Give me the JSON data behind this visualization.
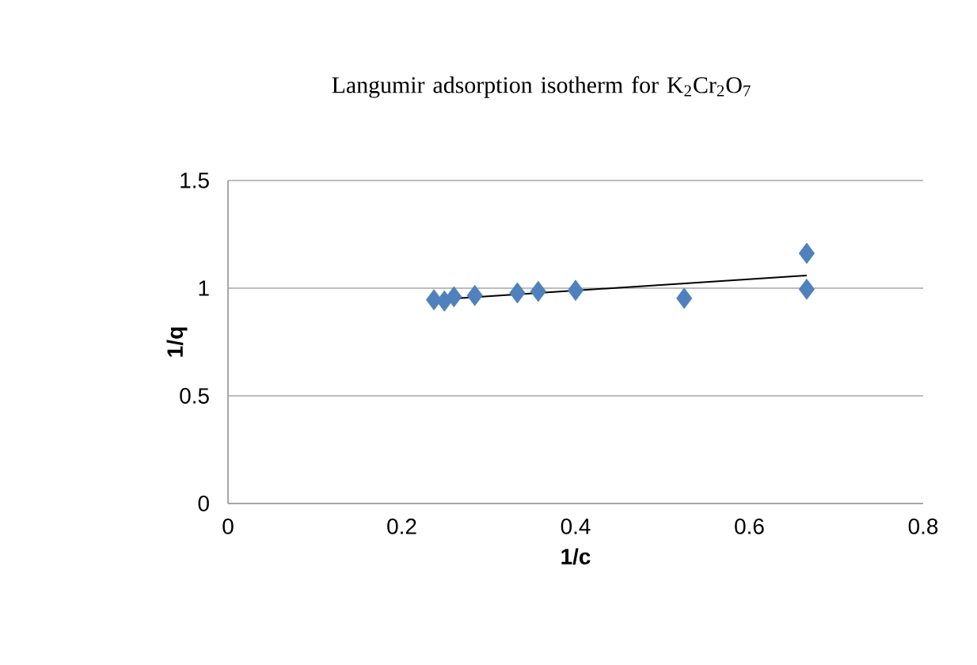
{
  "chart_data": {
    "type": "scatter",
    "title": "Langumir adsorption isotherm for K$_{2}$Cr$_{2}$O$_{7}$",
    "xlabel": "1/c",
    "ylabel": "1/q",
    "series": [
      {
        "color": "#4f81bd",
        "marker": "diamond",
        "x": [
          0.237,
          0.249,
          0.26,
          0.284,
          0.333,
          0.357,
          0.4,
          0.525,
          0.666,
          0.666
        ],
        "values": [
          0.946,
          0.94,
          0.96,
          0.966,
          0.978,
          0.985,
          0.99,
          0.953,
          1.162,
          0.995
        ]
      },
      {
        "type": "line",
        "color": "#000000",
        "marker": "none",
        "x": [
          0.237,
          0.666
        ],
        "values": [
          0.946,
          1.059
        ]
      }
    ],
    "xlim": [
      0,
      0.8
    ],
    "ylim": [
      0,
      1.5
    ],
    "xticks": [
      0,
      0.2,
      0.4,
      0.6,
      0.8
    ],
    "yticks": [
      0,
      0.5,
      1,
      1.5
    ],
    "grid": "y"
  }
}
